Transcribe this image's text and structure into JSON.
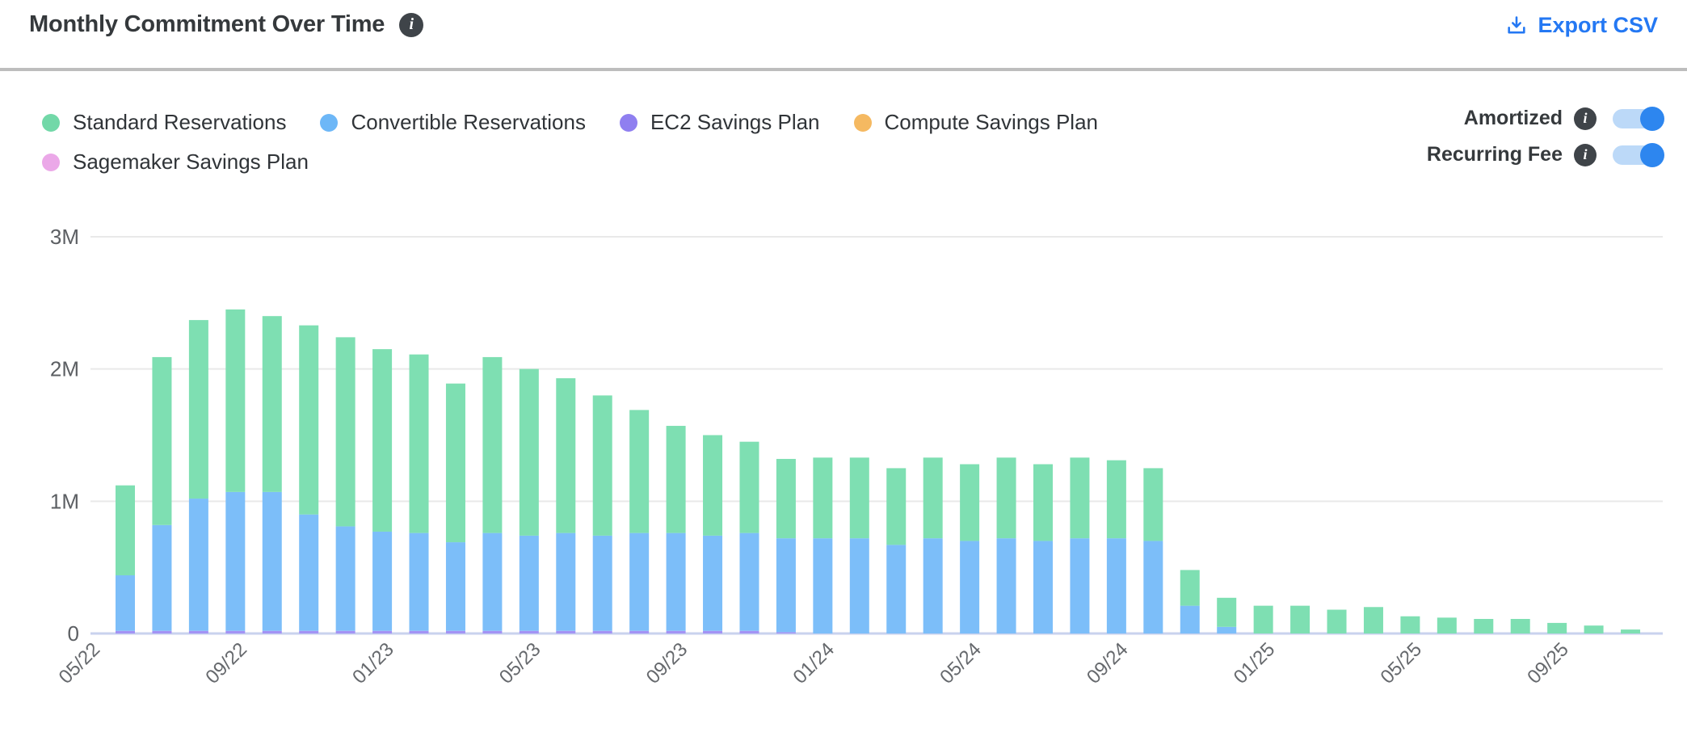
{
  "header": {
    "title": "Monthly Commitment Over Time",
    "title_info_icon": "info-icon",
    "export_label": "Export CSV",
    "export_color": "#2478f3"
  },
  "legend": [
    {
      "label": "Standard Reservations",
      "color": "#72d8a8"
    },
    {
      "label": "Convertible Reservations",
      "color": "#6db7f7"
    },
    {
      "label": "EC2 Savings Plan",
      "color": "#8f7ff0"
    },
    {
      "label": "Compute Savings Plan",
      "color": "#f5b961"
    },
    {
      "label": "Sagemaker Savings Plan",
      "color": "#eba8e8"
    }
  ],
  "toggles": [
    {
      "label": "Amortized",
      "state": "on"
    },
    {
      "label": "Recurring Fee",
      "state": "on"
    }
  ],
  "chart_data": {
    "type": "bar",
    "stacked": true,
    "title": "Monthly Commitment Over Time",
    "xlabel": "",
    "ylabel": "",
    "unit": "M (USD)",
    "ylim": [
      0,
      3
    ],
    "y_ticks": [
      "0",
      "1M",
      "2M",
      "3M"
    ],
    "tick_every": 4,
    "grid": true,
    "legend_position": "top-left",
    "categories": [
      "05/22",
      "06/22",
      "07/22",
      "08/22",
      "09/22",
      "10/22",
      "11/22",
      "12/22",
      "01/23",
      "02/23",
      "03/23",
      "04/23",
      "05/23",
      "06/23",
      "07/23",
      "08/23",
      "09/23",
      "10/23",
      "11/23",
      "12/23",
      "01/24",
      "02/24",
      "03/24",
      "04/24",
      "05/24",
      "06/24",
      "07/24",
      "08/24",
      "09/24",
      "10/24",
      "11/24",
      "12/24",
      "01/25",
      "02/25",
      "03/25",
      "04/25",
      "05/25",
      "06/25",
      "07/25",
      "08/25",
      "09/25",
      "10/25"
    ],
    "x_tick_labels": [
      "05/22",
      "09/22",
      "01/23",
      "05/23",
      "09/23",
      "01/24",
      "05/24",
      "09/24",
      "01/25",
      "05/25",
      "09/25"
    ],
    "series": [
      {
        "name": "Standard Reservations",
        "color": "#7edfb2",
        "values": [
          0.68,
          1.27,
          1.35,
          1.38,
          1.33,
          1.43,
          1.43,
          1.38,
          1.35,
          1.2,
          1.33,
          1.26,
          1.17,
          1.06,
          0.93,
          0.81,
          0.76,
          0.69,
          0.6,
          0.61,
          0.61,
          0.58,
          0.61,
          0.58,
          0.61,
          0.58,
          0.61,
          0.59,
          0.55,
          0.27,
          0.22,
          0.21,
          0.21,
          0.18,
          0.2,
          0.13,
          0.12,
          0.11,
          0.11,
          0.08,
          0.06,
          0.03
        ]
      },
      {
        "name": "Convertible Reservations",
        "color": "#7cbef9",
        "values": [
          0.42,
          0.8,
          1.0,
          1.05,
          1.05,
          0.88,
          0.79,
          0.75,
          0.74,
          0.67,
          0.74,
          0.72,
          0.74,
          0.72,
          0.74,
          0.74,
          0.72,
          0.74,
          0.71,
          0.72,
          0.72,
          0.67,
          0.72,
          0.7,
          0.72,
          0.7,
          0.72,
          0.72,
          0.7,
          0.21,
          0.05,
          0,
          0,
          0,
          0,
          0,
          0,
          0,
          0,
          0,
          0,
          0
        ]
      },
      {
        "name": "EC2 Savings Plan",
        "color": "#a393f5",
        "values": [
          0.02,
          0.02,
          0.02,
          0.02,
          0.02,
          0.02,
          0.02,
          0.02,
          0.02,
          0.02,
          0.02,
          0.02,
          0.02,
          0.02,
          0.02,
          0.02,
          0.02,
          0.02,
          0.01,
          0,
          0,
          0,
          0,
          0,
          0,
          0,
          0,
          0,
          0,
          0,
          0,
          0,
          0,
          0,
          0,
          0,
          0,
          0,
          0,
          0,
          0,
          0
        ]
      },
      {
        "name": "Compute Savings Plan",
        "color": "#f5b961",
        "values": [
          0,
          0,
          0,
          0,
          0,
          0,
          0,
          0,
          0,
          0,
          0,
          0,
          0,
          0,
          0,
          0,
          0,
          0,
          0,
          0,
          0,
          0,
          0,
          0,
          0,
          0,
          0,
          0,
          0,
          0,
          0,
          0,
          0,
          0,
          0,
          0,
          0,
          0,
          0,
          0,
          0,
          0
        ]
      },
      {
        "name": "Sagemaker Savings Plan",
        "color": "#eba8e8",
        "values": [
          0,
          0,
          0,
          0,
          0,
          0,
          0,
          0,
          0,
          0,
          0,
          0,
          0,
          0,
          0,
          0,
          0,
          0,
          0,
          0,
          0,
          0,
          0,
          0,
          0,
          0,
          0,
          0,
          0,
          0,
          0,
          0,
          0,
          0,
          0,
          0,
          0,
          0,
          0,
          0,
          0,
          0
        ]
      }
    ],
    "colors": {
      "gridline": "#e9e9e9",
      "baseline": "#c9d2ee"
    }
  }
}
